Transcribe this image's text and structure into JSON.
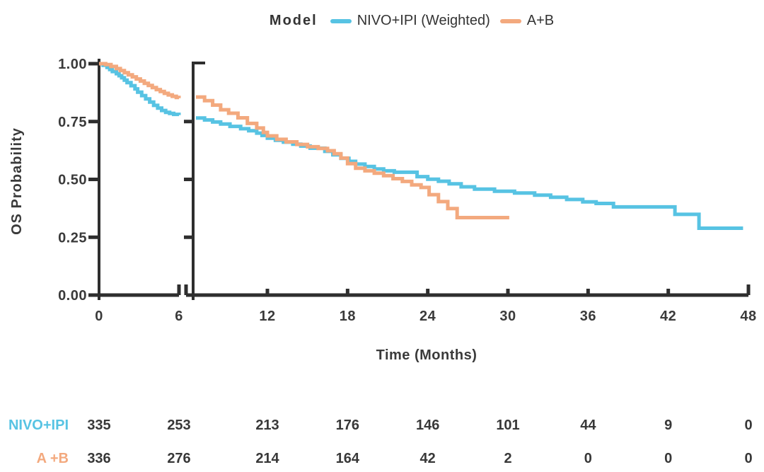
{
  "figure": {
    "legend": {
      "title": "Model",
      "items": [
        {
          "label": "NIVO+IPI (Weighted)",
          "color": "#57C3E3"
        },
        {
          "label": "A+B",
          "color": "#F3A97E"
        }
      ]
    },
    "ylabel": "OS Probability",
    "xlabel": "Time (Months)"
  },
  "chart_data": {
    "type": "line",
    "subtype": "kaplan-meier-step",
    "title": "",
    "legend_title": "Model",
    "legend_position": "top",
    "xlabel": "Time (Months)",
    "ylabel": "OS Probability",
    "ylim": [
      0,
      1
    ],
    "y_ticks": [
      1.0,
      0.75,
      0.5,
      0.25,
      0.0
    ],
    "y_tick_labels": [
      "1.00",
      "0.75",
      "0.50",
      "0.25",
      "0.00"
    ],
    "x_ticks": [
      0,
      6,
      12,
      18,
      24,
      30,
      36,
      42,
      48
    ],
    "x_tick_labels": [
      "0",
      "6",
      "12",
      "18",
      "24",
      "30",
      "36",
      "42",
      "48"
    ],
    "axis_break_between": [
      6,
      6.65
    ],
    "panel1_domain": [
      0,
      6
    ],
    "panel2_domain": [
      6.65,
      48
    ],
    "axis_color": "#2e2e2e",
    "series": [
      {
        "name": "NIVO+IPI (Weighted)",
        "color": "#57C3E3",
        "panel1": [
          [
            0,
            1.0
          ],
          [
            0.3,
            0.993
          ],
          [
            0.6,
            0.984
          ],
          [
            0.8,
            0.975
          ],
          [
            1.0,
            0.966
          ],
          [
            1.3,
            0.957
          ],
          [
            1.5,
            0.948
          ],
          [
            1.7,
            0.939
          ],
          [
            1.9,
            0.929
          ],
          [
            2.1,
            0.918
          ],
          [
            2.4,
            0.905
          ],
          [
            2.7,
            0.891
          ],
          [
            2.9,
            0.877
          ],
          [
            3.2,
            0.862
          ],
          [
            3.5,
            0.848
          ],
          [
            3.8,
            0.834
          ],
          [
            4.1,
            0.82
          ],
          [
            4.4,
            0.808
          ],
          [
            4.7,
            0.798
          ],
          [
            5.0,
            0.79
          ],
          [
            5.3,
            0.785
          ],
          [
            5.6,
            0.781
          ],
          [
            6.0,
            0.778
          ]
        ],
        "panel2": [
          [
            6.65,
            0.765
          ],
          [
            7.3,
            0.757
          ],
          [
            7.9,
            0.748
          ],
          [
            8.5,
            0.739
          ],
          [
            9.2,
            0.729
          ],
          [
            10.0,
            0.719
          ],
          [
            10.6,
            0.71
          ],
          [
            11.2,
            0.7
          ],
          [
            11.6,
            0.69
          ],
          [
            12.0,
            0.678
          ],
          [
            12.6,
            0.669
          ],
          [
            13.2,
            0.661
          ],
          [
            13.9,
            0.652
          ],
          [
            14.5,
            0.644
          ],
          [
            15.2,
            0.635
          ],
          [
            16.3,
            0.621
          ],
          [
            16.9,
            0.606
          ],
          [
            17.5,
            0.591
          ],
          [
            18.1,
            0.578
          ],
          [
            18.6,
            0.566
          ],
          [
            19.3,
            0.556
          ],
          [
            20.0,
            0.545
          ],
          [
            20.7,
            0.537
          ],
          [
            21.5,
            0.531
          ],
          [
            23.2,
            0.512
          ],
          [
            24.0,
            0.501
          ],
          [
            24.8,
            0.492
          ],
          [
            25.6,
            0.481
          ],
          [
            26.5,
            0.468
          ],
          [
            27.5,
            0.458
          ],
          [
            29.0,
            0.449
          ],
          [
            30.5,
            0.441
          ],
          [
            32.0,
            0.432
          ],
          [
            33.2,
            0.423
          ],
          [
            34.4,
            0.413
          ],
          [
            35.6,
            0.403
          ],
          [
            36.6,
            0.396
          ],
          [
            37.9,
            0.381
          ],
          [
            42.5,
            0.349
          ],
          [
            44.3,
            0.289
          ],
          [
            47.6,
            0.289
          ]
        ]
      },
      {
        "name": "A+B",
        "color": "#F3A97E",
        "panel1": [
          [
            0,
            1.0
          ],
          [
            0.5,
            0.996
          ],
          [
            0.9,
            0.988
          ],
          [
            1.3,
            0.979
          ],
          [
            1.6,
            0.97
          ],
          [
            1.9,
            0.961
          ],
          [
            2.2,
            0.952
          ],
          [
            2.5,
            0.943
          ],
          [
            2.8,
            0.934
          ],
          [
            3.1,
            0.925
          ],
          [
            3.4,
            0.915
          ],
          [
            3.7,
            0.906
          ],
          [
            4.0,
            0.897
          ],
          [
            4.3,
            0.888
          ],
          [
            4.6,
            0.88
          ],
          [
            4.9,
            0.872
          ],
          [
            5.2,
            0.865
          ],
          [
            5.5,
            0.859
          ],
          [
            5.8,
            0.854
          ],
          [
            6.0,
            0.851
          ]
        ],
        "panel2": [
          [
            6.65,
            0.856
          ],
          [
            7.3,
            0.84
          ],
          [
            7.9,
            0.821
          ],
          [
            8.5,
            0.801
          ],
          [
            9.1,
            0.786
          ],
          [
            9.8,
            0.766
          ],
          [
            10.5,
            0.742
          ],
          [
            11.2,
            0.722
          ],
          [
            11.7,
            0.703
          ],
          [
            12.0,
            0.688
          ],
          [
            12.7,
            0.673
          ],
          [
            13.4,
            0.662
          ],
          [
            14.2,
            0.651
          ],
          [
            15.0,
            0.641
          ],
          [
            15.8,
            0.634
          ],
          [
            16.5,
            0.624
          ],
          [
            17.0,
            0.611
          ],
          [
            17.5,
            0.592
          ],
          [
            18.0,
            0.568
          ],
          [
            18.6,
            0.548
          ],
          [
            19.3,
            0.537
          ],
          [
            20.0,
            0.527
          ],
          [
            20.7,
            0.516
          ],
          [
            21.4,
            0.503
          ],
          [
            22.1,
            0.491
          ],
          [
            22.8,
            0.476
          ],
          [
            23.5,
            0.465
          ],
          [
            24.1,
            0.434
          ],
          [
            24.8,
            0.404
          ],
          [
            25.5,
            0.374
          ],
          [
            26.2,
            0.335
          ],
          [
            30.1,
            0.335
          ]
        ]
      }
    ],
    "risk_table": {
      "time_points": [
        0,
        6,
        12,
        18,
        24,
        30,
        36,
        42,
        48
      ],
      "rows": [
        {
          "label": "NIVO+IPI",
          "color": "#57C3E3",
          "values": [
            "335",
            "253",
            "213",
            "176",
            "146",
            "101",
            "44",
            "9",
            "0"
          ]
        },
        {
          "label": "A +B",
          "color": "#F3A97E",
          "values": [
            "336",
            "276",
            "214",
            "164",
            "42",
            "2",
            "0",
            "0",
            "0"
          ]
        }
      ]
    }
  }
}
